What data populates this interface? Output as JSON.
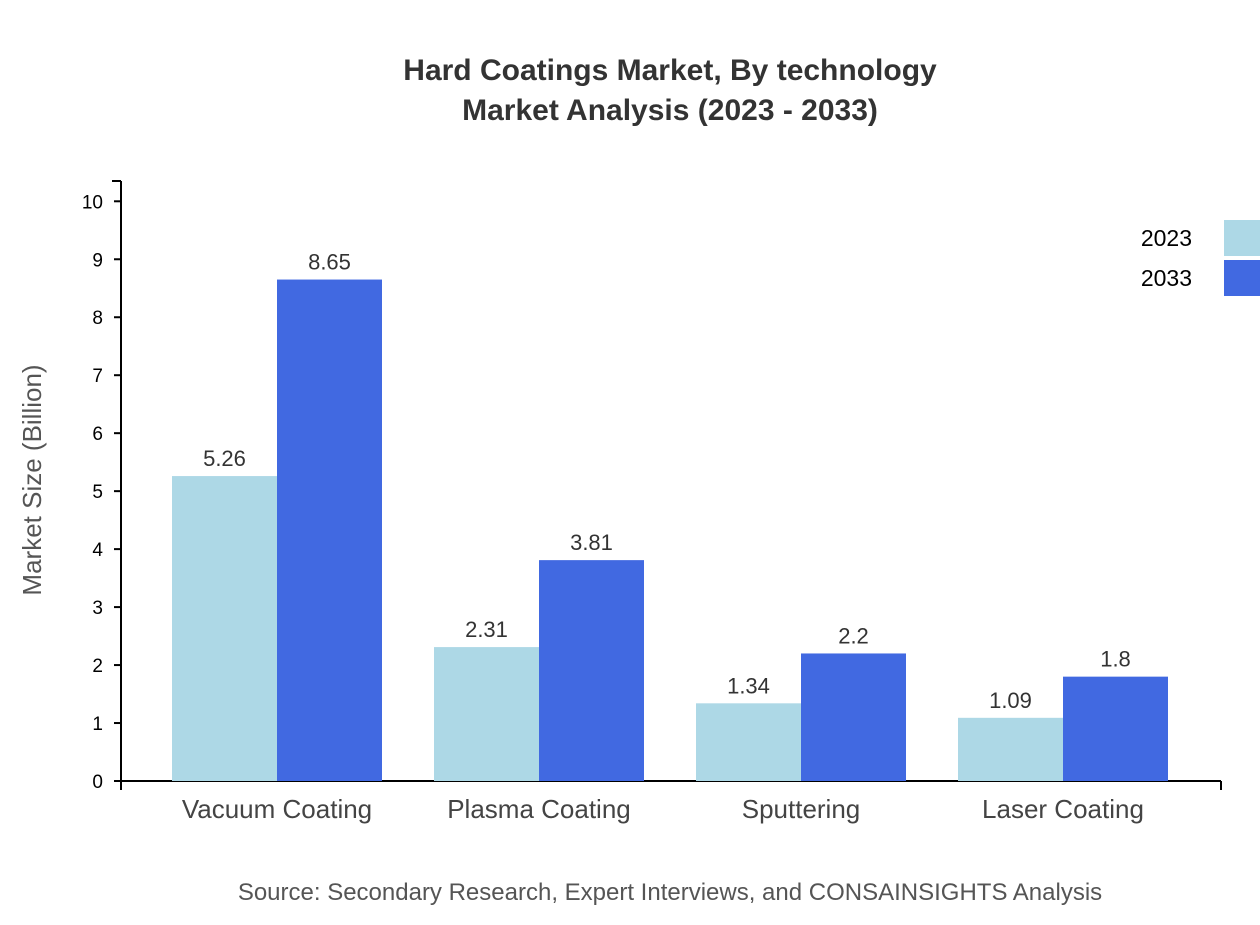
{
  "chart_data": {
    "type": "bar",
    "title": "Hard Coatings Market, By technology",
    "subtitle": "Market Analysis (2023 - 2033)",
    "xlabel": "",
    "ylabel": "Market Size (Billion)",
    "ylim": [
      0,
      10.35
    ],
    "yticks": [
      0,
      1,
      2,
      3,
      4,
      5,
      6,
      7,
      8,
      9,
      10
    ],
    "categories": [
      "Vacuum Coating",
      "Plasma Coating",
      "Sputtering",
      "Laser Coating"
    ],
    "series": [
      {
        "name": "2023",
        "color": "#ADD8E6",
        "values": [
          5.26,
          2.31,
          1.34,
          1.09
        ]
      },
      {
        "name": "2033",
        "color": "#4169E1",
        "values": [
          8.65,
          3.81,
          2.2,
          1.8
        ]
      }
    ],
    "grid": false,
    "legend": "top-right",
    "source": "Source: Secondary Research, Expert Interviews, and CONSAINSIGHTS Analysis"
  }
}
